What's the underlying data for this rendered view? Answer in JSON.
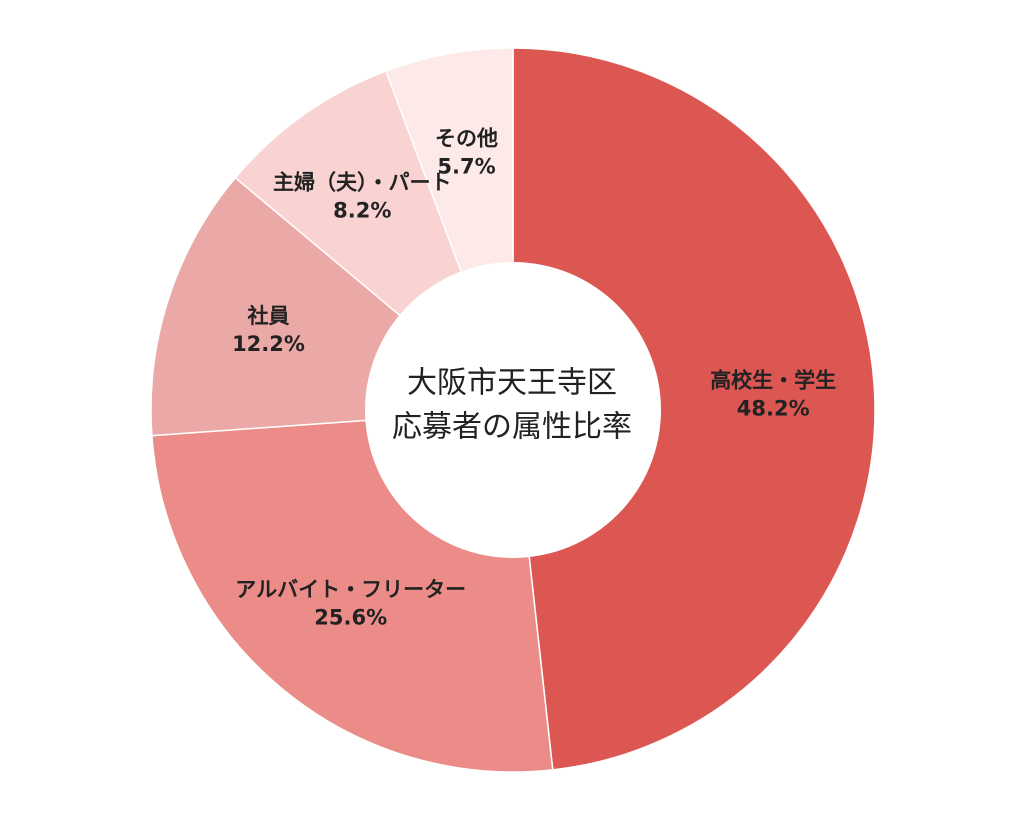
{
  "chart_data": {
    "type": "pie",
    "title_lines": [
      "大阪市天王寺区",
      "応募者の属性比率"
    ],
    "slices": [
      {
        "label": "高校生・学生",
        "value_label": "48.2%",
        "value": 48.2,
        "color": "#dc5752"
      },
      {
        "label": "アルバイト・フリーター",
        "value_label": "25.6%",
        "value": 25.6,
        "color": "#ec8c88"
      },
      {
        "label": "社員",
        "value_label": "12.2%",
        "value": 12.2,
        "color": "#eaa8a6"
      },
      {
        "label": "主婦（夫）・パート",
        "value_label": "8.2%",
        "value": 8.2,
        "color": "#f8d3d2"
      },
      {
        "label": "その他",
        "value_label": "5.7%",
        "value": 5.7,
        "color": "#fde9e8"
      }
    ]
  }
}
